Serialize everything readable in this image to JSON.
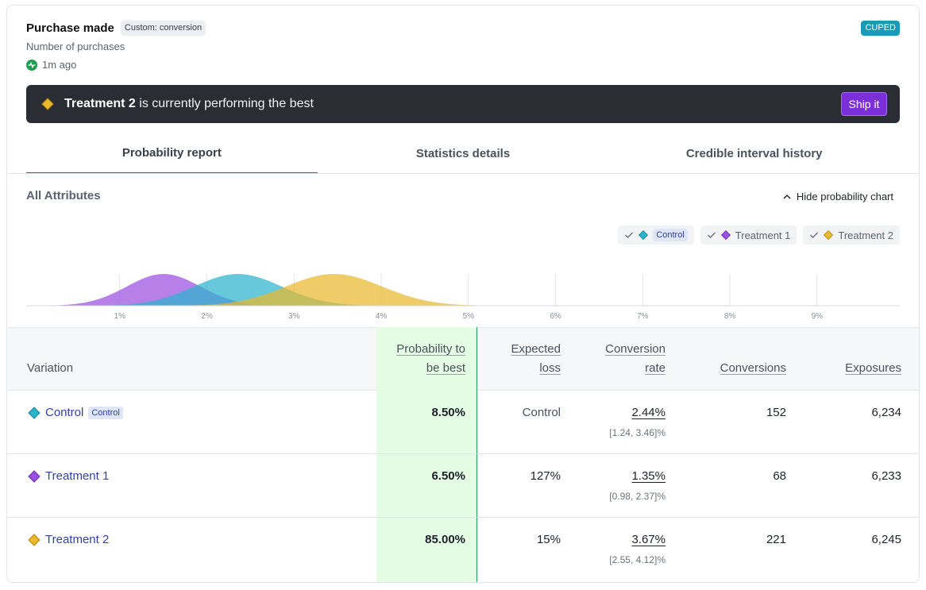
{
  "header": {
    "title": "Purchase made",
    "tag": "Custom: conversion",
    "subtitle": "Number of purchases",
    "updated": "1m ago",
    "badge": "CUPED"
  },
  "banner": {
    "leader": "Treatment 2",
    "message": "is currently performing the best",
    "ship_label": "Ship it"
  },
  "tabs": [
    {
      "label": "Probability report",
      "active": true
    },
    {
      "label": "Statistics details",
      "active": false
    },
    {
      "label": "Credible interval history",
      "active": false
    }
  ],
  "section": {
    "title": "All Attributes",
    "toggle_label": "Hide probability chart"
  },
  "legend": [
    {
      "name": "Control",
      "color": "#2bb3cc",
      "chip": "Control"
    },
    {
      "name": "Treatment 1",
      "color": "#9b4fe0"
    },
    {
      "name": "Treatment 2",
      "color": "#e9b82c"
    }
  ],
  "chart_data": {
    "type": "area",
    "x_ticks": [
      "1%",
      "2%",
      "3%",
      "4%",
      "5%",
      "6%",
      "7%",
      "8%",
      "9%"
    ],
    "xlim": [
      0,
      10
    ],
    "grid": true,
    "series": [
      {
        "name": "Treatment 1",
        "color": "#9b4fe0",
        "mean": 1.5,
        "sd": 0.42
      },
      {
        "name": "Control",
        "color": "#2bb3cc",
        "mean": 2.35,
        "sd": 0.5
      },
      {
        "name": "Treatment 2",
        "color": "#e9b82c",
        "mean": 3.45,
        "sd": 0.55
      }
    ]
  },
  "table": {
    "headers": {
      "variation": "Variation",
      "prob_line1": "Probability to",
      "prob_line2": "be best",
      "loss_line1": "Expected",
      "loss_line2": "loss",
      "rate_line1": "Conversion",
      "rate_line2": "rate",
      "conversions": "Conversions",
      "exposures": "Exposures"
    },
    "rows": [
      {
        "name": "Control",
        "chip": "Control",
        "color": "#2bb3cc",
        "prob": "8.50%",
        "loss": "Control",
        "rate": "2.44%",
        "ci": "[1.24, 3.46]%",
        "conversions": "152",
        "exposures": "6,234"
      },
      {
        "name": "Treatment 1",
        "color": "#9b4fe0",
        "prob": "6.50%",
        "loss": "127%",
        "rate": "1.35%",
        "ci": "[0.98, 2.37]%",
        "conversions": "68",
        "exposures": "6,233"
      },
      {
        "name": "Treatment 2",
        "color": "#e9b82c",
        "prob": "85.00%",
        "loss": "15%",
        "rate": "3.67%",
        "ci": "[2.55, 4.12]%",
        "conversions": "221",
        "exposures": "6,245"
      }
    ]
  }
}
